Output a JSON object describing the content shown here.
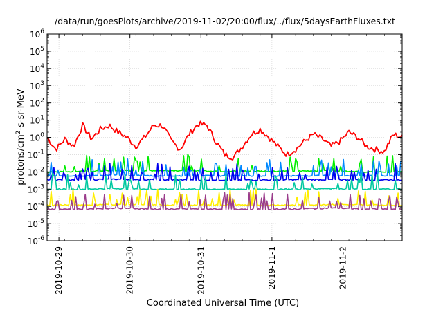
{
  "chart_data": {
    "type": "line",
    "title": "/data/run/goesPlots/archive/2019-11-02/20:00/flux/../flux/5daysEarthFluxes.txt",
    "xlabel": "Coordinated Universal Time (UTC)",
    "ylabel": {
      "base": "protons/cm",
      "sup": "2",
      "rest": "-s-sr-MeV"
    },
    "y_scale": "log",
    "ylim": [
      1e-06,
      1000000.0
    ],
    "y_ticks": [
      {
        "value": 1e-06,
        "base": "10",
        "exp": "-6"
      },
      {
        "value": 1e-05,
        "base": "10",
        "exp": "-5"
      },
      {
        "value": 0.0001,
        "base": "10",
        "exp": "-4"
      },
      {
        "value": 0.001,
        "base": "10",
        "exp": "-3"
      },
      {
        "value": 0.01,
        "base": "10",
        "exp": "-2"
      },
      {
        "value": 0.1,
        "base": "10",
        "exp": "-1"
      },
      {
        "value": 1,
        "base": "10",
        "exp": "0"
      },
      {
        "value": 10,
        "base": "10",
        "exp": "1"
      },
      {
        "value": 100,
        "base": "10",
        "exp": "2"
      },
      {
        "value": 1000,
        "base": "10",
        "exp": "3"
      },
      {
        "value": 10000,
        "base": "10",
        "exp": "4"
      },
      {
        "value": 100000,
        "base": "10",
        "exp": "5"
      },
      {
        "value": 1000000,
        "base": "10",
        "exp": "6"
      }
    ],
    "xlim": [
      "2019-10-28T20:00",
      "2019-11-02T20:00"
    ],
    "x_ticks": [
      {
        "value": "2019-10-29T00:00",
        "label": "2019-10-29"
      },
      {
        "value": "2019-10-30T00:00",
        "label": "2019-10-30"
      },
      {
        "value": "2019-10-31T00:00",
        "label": "2019-10-31"
      },
      {
        "value": "2019-11-01T00:00",
        "label": "2019-11-1"
      },
      {
        "value": "2019-11-02T00:00",
        "label": "2019-11-2"
      }
    ],
    "series": [
      {
        "color": "#ff0000",
        "x": [
          "2019-10-28T20:00",
          "2019-10-28T23:00",
          "2019-10-29T02:00",
          "2019-10-29T05:00",
          "2019-10-29T08:00",
          "2019-10-29T11:00",
          "2019-10-29T14:00",
          "2019-10-29T17:00",
          "2019-10-29T20:00",
          "2019-10-29T23:00",
          "2019-10-30T02:00",
          "2019-10-30T05:00",
          "2019-10-30T08:00",
          "2019-10-30T11:00",
          "2019-10-30T14:00",
          "2019-10-30T17:00",
          "2019-10-30T20:00",
          "2019-10-30T23:00",
          "2019-10-31T02:00",
          "2019-10-31T05:00",
          "2019-10-31T08:00",
          "2019-10-31T11:00",
          "2019-10-31T14:00",
          "2019-10-31T17:00",
          "2019-10-31T20:00",
          "2019-10-31T23:00",
          "2019-11-01T02:00",
          "2019-11-01T05:00",
          "2019-11-01T08:00",
          "2019-11-01T11:00",
          "2019-11-01T14:00",
          "2019-11-01T17:00",
          "2019-11-01T20:00",
          "2019-11-01T23:00",
          "2019-11-02T02:00",
          "2019-11-02T05:00",
          "2019-11-02T08:00",
          "2019-11-02T11:00",
          "2019-11-02T14:00",
          "2019-11-02T17:00",
          "2019-11-02T20:00"
        ],
        "y": [
          1.0,
          0.2,
          0.8,
          0.3,
          5,
          0.8,
          3,
          5,
          2,
          1,
          0.3,
          1,
          5,
          5,
          0.6,
          0.2,
          1.5,
          6,
          5,
          0.6,
          0.1,
          0.07,
          0.3,
          1.5,
          3,
          1.0,
          0.3,
          0.1,
          0.2,
          0.6,
          1.5,
          0.8,
          0.3,
          0.6,
          2,
          1.0,
          0.3,
          0.2,
          0.15,
          1.5,
          1.0
        ]
      },
      {
        "color": "#00ee00",
        "x": [
          "2019-10-28T20:00",
          "2019-10-29T08:00",
          "2019-10-29T20:00",
          "2019-10-30T08:00",
          "2019-10-30T20:00",
          "2019-10-31T08:00",
          "2019-10-31T20:00",
          "2019-11-01T08:00",
          "2019-11-01T20:00",
          "2019-11-02T08:00",
          "2019-11-02T20:00"
        ],
        "y": [
          0.01,
          0.011,
          0.012,
          0.012,
          0.012,
          0.011,
          0.011,
          0.011,
          0.012,
          0.01,
          0.01
        ]
      },
      {
        "color": "#0088ff",
        "x": [
          "2019-10-28T20:00",
          "2019-10-29T08:00",
          "2019-10-29T20:00",
          "2019-10-30T08:00",
          "2019-10-30T20:00",
          "2019-10-31T08:00",
          "2019-10-31T20:00",
          "2019-11-01T08:00",
          "2019-11-01T20:00",
          "2019-11-02T08:00",
          "2019-11-02T20:00"
        ],
        "y": [
          0.006,
          0.006,
          0.0065,
          0.006,
          0.006,
          0.006,
          0.0058,
          0.006,
          0.0062,
          0.006,
          0.006
        ]
      },
      {
        "color": "#0000ee",
        "x": [
          "2019-10-28T20:00",
          "2019-10-29T08:00",
          "2019-10-29T20:00",
          "2019-10-30T08:00",
          "2019-10-30T20:00",
          "2019-10-31T08:00",
          "2019-10-31T20:00",
          "2019-11-01T08:00",
          "2019-11-01T20:00",
          "2019-11-02T08:00",
          "2019-11-02T20:00"
        ],
        "y": [
          0.0035,
          0.0035,
          0.0038,
          0.0035,
          0.0035,
          0.0034,
          0.0034,
          0.0035,
          0.0036,
          0.0035,
          0.0035
        ]
      },
      {
        "color": "#00c8a0",
        "x": [
          "2019-10-28T20:00",
          "2019-10-29T08:00",
          "2019-10-29T20:00",
          "2019-10-30T08:00",
          "2019-10-30T20:00",
          "2019-10-31T08:00",
          "2019-10-31T20:00",
          "2019-11-01T08:00",
          "2019-11-01T20:00",
          "2019-11-02T08:00",
          "2019-11-02T20:00"
        ],
        "y": [
          0.001,
          0.001,
          0.0011,
          0.001,
          0.001,
          0.001,
          0.001,
          0.001,
          0.0011,
          0.001,
          0.001
        ]
      },
      {
        "color": "#ffee00",
        "x": [
          "2019-10-28T20:00",
          "2019-10-29T08:00",
          "2019-10-29T20:00",
          "2019-10-30T08:00",
          "2019-10-30T20:00",
          "2019-10-31T08:00",
          "2019-10-31T20:00",
          "2019-11-01T08:00",
          "2019-11-01T20:00",
          "2019-11-02T08:00",
          "2019-11-02T20:00"
        ],
        "y": [
          0.00012,
          0.00012,
          0.00013,
          0.00012,
          0.00012,
          0.00012,
          0.00012,
          0.00012,
          0.00013,
          0.00012,
          0.00012
        ]
      },
      {
        "color": "#9b3d8c",
        "x": [
          "2019-10-28T20:00",
          "2019-10-29T08:00",
          "2019-10-29T20:00",
          "2019-10-30T08:00",
          "2019-10-30T20:00",
          "2019-10-31T08:00",
          "2019-10-31T20:00",
          "2019-11-01T08:00",
          "2019-11-01T20:00",
          "2019-11-02T08:00",
          "2019-11-02T20:00"
        ],
        "y": [
          7e-05,
          7e-05,
          8e-05,
          7e-05,
          7e-05,
          7e-05,
          7e-05,
          7e-05,
          8e-05,
          7e-05,
          7e-05
        ]
      }
    ],
    "grid": true,
    "legend": "none"
  }
}
